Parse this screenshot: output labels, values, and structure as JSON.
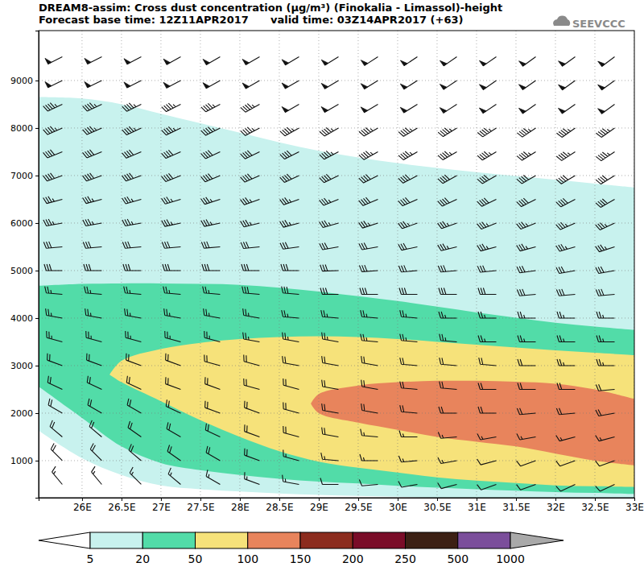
{
  "chart_data": {
    "type": "contour",
    "title": "DREAM8-assim: Cross dust concentration (μg/m³) (Finokalia - Limassol)-height",
    "subtitle": "Forecast base time: 12Z11APR2017      valid time: 03Z14APR2017 (+63)",
    "logo": "SEEVCCC",
    "xlim": [
      25.45,
      33
    ],
    "ylim": [
      220,
      10050
    ],
    "xticks": [
      {
        "value": 26,
        "label": "26E"
      },
      {
        "value": 26.5,
        "label": "26.5E"
      },
      {
        "value": 27,
        "label": "27E"
      },
      {
        "value": 27.5,
        "label": "27.5E"
      },
      {
        "value": 28,
        "label": "28E"
      },
      {
        "value": 28.5,
        "label": "28.5E"
      },
      {
        "value": 29,
        "label": "29E"
      },
      {
        "value": 29.5,
        "label": "29.5E"
      },
      {
        "value": 30,
        "label": "30E"
      },
      {
        "value": 30.5,
        "label": "30.5E"
      },
      {
        "value": 31,
        "label": "31E"
      },
      {
        "value": 31.5,
        "label": "31.5E"
      },
      {
        "value": 32,
        "label": "32E"
      },
      {
        "value": 32.5,
        "label": "32.5E"
      },
      {
        "value": 33,
        "label": "33E"
      }
    ],
    "yticks": [
      1000,
      2000,
      3000,
      4000,
      5000,
      6000,
      7000,
      8000,
      9000
    ],
    "grid": true,
    "bands": [
      {
        "level": 5,
        "x": [
          25.45,
          26,
          26.5,
          27,
          27.5,
          28,
          28.5,
          29,
          29.5,
          30,
          30.5,
          31,
          31.5,
          32,
          32.5,
          33
        ],
        "lower": [
          1630,
          1050,
          700,
          480,
          400,
          350,
          310,
          280,
          260,
          240,
          220,
          220,
          220,
          220,
          220,
          220
        ],
        "upper": [
          8650,
          8620,
          8500,
          8300,
          8100,
          7900,
          7700,
          7520,
          7380,
          7260,
          7160,
          7070,
          6990,
          6910,
          6830,
          6750
        ]
      },
      {
        "level": 20,
        "x": [
          25.45,
          26,
          26.5,
          27,
          27.5,
          28,
          28.5,
          29,
          29.5,
          30,
          30.5,
          31,
          31.5,
          32,
          32.5,
          33
        ],
        "lower": [
          2560,
          1900,
          1300,
          950,
          800,
          700,
          620,
          560,
          520,
          470,
          430,
          400,
          370,
          340,
          320,
          300
        ],
        "upper": [
          4680,
          4720,
          4730,
          4730,
          4720,
          4700,
          4640,
          4560,
          4460,
          4360,
          4240,
          4120,
          4010,
          3900,
          3820,
          3750
        ]
      },
      {
        "level": 50,
        "x": [
          26.35,
          26.5,
          27,
          27.5,
          28,
          28.5,
          29,
          29.5,
          30,
          30.5,
          31,
          31.5,
          32,
          32.5,
          33
        ],
        "lower": [
          2810,
          2650,
          2250,
          1850,
          1500,
          1200,
          980,
          850,
          750,
          650,
          580,
          530,
          480,
          460,
          450
        ],
        "upper": [
          2810,
          3100,
          3350,
          3480,
          3560,
          3600,
          3620,
          3600,
          3560,
          3500,
          3440,
          3380,
          3320,
          3270,
          3220
        ]
      },
      {
        "level": 100,
        "x": [
          28.9,
          29,
          29.5,
          30,
          30.5,
          31,
          31.5,
          32,
          32.5,
          33
        ],
        "lower": [
          2200,
          2000,
          1800,
          1650,
          1500,
          1400,
          1300,
          1150,
          1000,
          900
        ],
        "upper": [
          2200,
          2400,
          2580,
          2650,
          2680,
          2680,
          2660,
          2620,
          2500,
          2300
        ]
      }
    ],
    "colorbar": {
      "levels": [
        5,
        20,
        50,
        100,
        150,
        200,
        250,
        500,
        1000
      ],
      "colors": [
        "#ffffff",
        "#c8f2ee",
        "#52dca8",
        "#f6e27a",
        "#e8845c",
        "#8c2c1e",
        "#7a0c28",
        "#3c2014",
        "#7b4e9b",
        "#a9a9a9"
      ]
    },
    "wind": {
      "x": [
        25.75,
        26.25,
        26.75,
        27.25,
        27.75,
        28.25,
        28.75,
        29.25,
        29.75,
        30.25,
        30.75,
        31.25,
        31.75,
        32.25,
        32.75
      ],
      "heights": [
        500,
        1000,
        1500,
        2000,
        2500,
        3000,
        3500,
        4000,
        4500,
        5000,
        5500,
        6000,
        6500,
        7000,
        7500,
        8000,
        8500,
        9000,
        9500
      ],
      "direction": [
        [
          320,
          320,
          315,
          310,
          300,
          290,
          280,
          270,
          265,
          260,
          255,
          250,
          250,
          245,
          245
        ],
        [
          315,
          315,
          310,
          305,
          300,
          290,
          285,
          275,
          270,
          265,
          260,
          255,
          250,
          250,
          250
        ],
        [
          310,
          310,
          305,
          300,
          295,
          290,
          285,
          280,
          275,
          270,
          265,
          260,
          260,
          255,
          255
        ],
        [
          300,
          300,
          300,
          295,
          290,
          290,
          285,
          280,
          280,
          275,
          270,
          270,
          265,
          265,
          260
        ],
        [
          295,
          295,
          295,
          290,
          290,
          285,
          285,
          280,
          280,
          275,
          275,
          270,
          270,
          270,
          265
        ],
        [
          290,
          290,
          290,
          290,
          285,
          285,
          280,
          280,
          280,
          275,
          275,
          275,
          270,
          270,
          270
        ],
        [
          285,
          285,
          285,
          285,
          285,
          280,
          280,
          280,
          275,
          275,
          275,
          270,
          270,
          270,
          270
        ],
        [
          280,
          280,
          280,
          280,
          280,
          280,
          275,
          275,
          275,
          275,
          270,
          270,
          270,
          270,
          270
        ],
        [
          275,
          275,
          275,
          275,
          275,
          275,
          275,
          270,
          270,
          270,
          270,
          270,
          265,
          265,
          265
        ],
        [
          270,
          270,
          270,
          270,
          270,
          270,
          270,
          268,
          266,
          265,
          265,
          264,
          262,
          260,
          260
        ],
        [
          265,
          265,
          265,
          265,
          265,
          264,
          262,
          260,
          260,
          258,
          256,
          255,
          255,
          254,
          252
        ],
        [
          260,
          260,
          260,
          258,
          258,
          256,
          255,
          254,
          252,
          250,
          250,
          248,
          248,
          246,
          245
        ],
        [
          255,
          255,
          254,
          253,
          252,
          250,
          250,
          248,
          247,
          246,
          245,
          244,
          243,
          242,
          240
        ],
        [
          250,
          250,
          250,
          248,
          247,
          246,
          245,
          244,
          243,
          242,
          241,
          240,
          240,
          239,
          238
        ],
        [
          248,
          248,
          247,
          246,
          245,
          244,
          243,
          242,
          241,
          240,
          240,
          239,
          238,
          237,
          236
        ],
        [
          246,
          246,
          245,
          244,
          243,
          242,
          241,
          240,
          240,
          239,
          238,
          237,
          236,
          235,
          235
        ],
        [
          245,
          245,
          244,
          243,
          242,
          241,
          240,
          240,
          239,
          238,
          237,
          236,
          235,
          235,
          234
        ],
        [
          244,
          244,
          243,
          242,
          241,
          240,
          240,
          239,
          238,
          237,
          236,
          235,
          235,
          234,
          234
        ],
        [
          243,
          243,
          242,
          241,
          240,
          240,
          239,
          238,
          237,
          236,
          235,
          235,
          234,
          234,
          233
        ]
      ],
      "speed": [
        [
          15,
          15,
          15,
          15,
          15,
          15,
          15,
          10,
          10,
          10,
          10,
          10,
          10,
          10,
          10
        ],
        [
          20,
          20,
          20,
          20,
          20,
          20,
          15,
          15,
          15,
          15,
          15,
          10,
          10,
          10,
          10
        ],
        [
          20,
          20,
          20,
          20,
          20,
          20,
          20,
          20,
          15,
          15,
          15,
          15,
          15,
          15,
          15
        ],
        [
          20,
          20,
          20,
          20,
          20,
          20,
          20,
          20,
          20,
          20,
          20,
          20,
          20,
          20,
          20
        ],
        [
          20,
          20,
          20,
          20,
          20,
          20,
          20,
          20,
          20,
          20,
          20,
          20,
          20,
          20,
          20
        ],
        [
          20,
          20,
          20,
          20,
          20,
          20,
          20,
          20,
          20,
          20,
          20,
          20,
          20,
          25,
          25
        ],
        [
          25,
          25,
          25,
          25,
          25,
          25,
          25,
          25,
          25,
          25,
          25,
          25,
          25,
          25,
          25
        ],
        [
          25,
          25,
          25,
          25,
          25,
          25,
          25,
          25,
          25,
          25,
          25,
          25,
          25,
          25,
          25
        ],
        [
          25,
          25,
          25,
          25,
          25,
          30,
          30,
          30,
          30,
          30,
          30,
          30,
          30,
          30,
          30
        ],
        [
          30,
          30,
          30,
          30,
          30,
          30,
          30,
          30,
          30,
          30,
          30,
          30,
          30,
          30,
          30
        ],
        [
          30,
          30,
          30,
          30,
          30,
          30,
          30,
          30,
          30,
          30,
          35,
          35,
          35,
          35,
          35
        ],
        [
          35,
          35,
          35,
          35,
          35,
          35,
          35,
          35,
          35,
          35,
          35,
          35,
          35,
          35,
          35
        ],
        [
          35,
          35,
          35,
          35,
          35,
          35,
          35,
          35,
          40,
          40,
          40,
          40,
          40,
          40,
          40
        ],
        [
          40,
          40,
          40,
          40,
          40,
          40,
          40,
          40,
          40,
          40,
          40,
          40,
          40,
          40,
          40
        ],
        [
          40,
          40,
          40,
          40,
          40,
          40,
          40,
          45,
          45,
          45,
          45,
          45,
          45,
          45,
          45
        ],
        [
          45,
          45,
          45,
          45,
          45,
          45,
          45,
          45,
          45,
          45,
          45,
          45,
          45,
          45,
          45
        ],
        [
          45,
          45,
          45,
          45,
          45,
          45,
          50,
          50,
          50,
          50,
          50,
          50,
          50,
          50,
          50
        ],
        [
          50,
          50,
          50,
          50,
          50,
          50,
          50,
          50,
          50,
          50,
          50,
          50,
          50,
          50,
          50
        ],
        [
          50,
          50,
          50,
          50,
          50,
          50,
          50,
          50,
          50,
          50,
          50,
          50,
          50,
          50,
          50
        ]
      ]
    }
  }
}
